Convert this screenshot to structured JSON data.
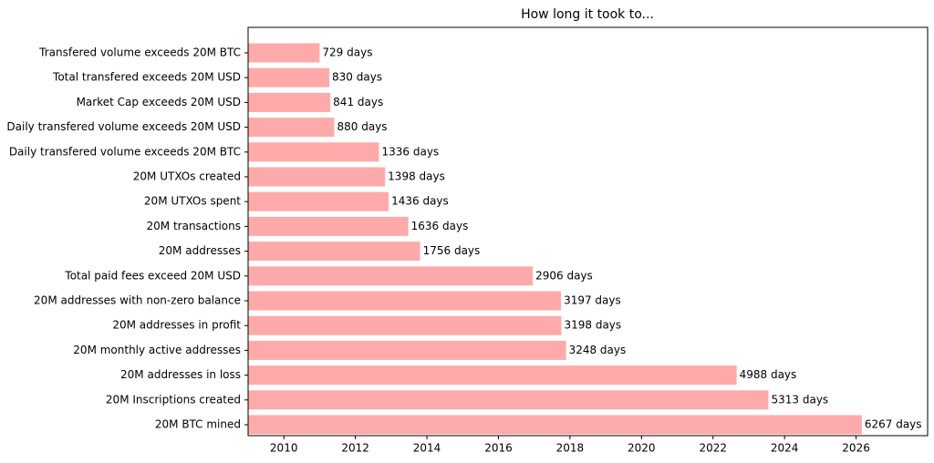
{
  "chart_data": {
    "type": "barh",
    "title": "How long it took to...",
    "categories": [
      "Transfered volume exceeds 20M BTC",
      "Total transfered exceeds 20M USD",
      "Market Cap exceeds 20M USD",
      "Daily transfered volume exceeds 20M USD",
      "Daily transfered volume exceeds 20M BTC",
      "20M UTXOs created",
      "20M UTXOs spent",
      "20M transactions",
      "20M addresses",
      "Total paid fees exceed 20M USD",
      "20M addresses with non-zero balance",
      "20M addresses in profit",
      "20M monthly active addresses",
      "20M addresses in loss",
      "20M Inscriptions created",
      "20M BTC mined"
    ],
    "values": [
      2011.0,
      2011.27,
      2011.3,
      2011.41,
      2012.66,
      2012.83,
      2012.93,
      2013.48,
      2013.81,
      2016.96,
      2017.75,
      2017.76,
      2017.89,
      2022.66,
      2023.55,
      2026.16
    ],
    "value_labels": [
      "729 days",
      "830 days",
      "841 days",
      "880 days",
      "1336 days",
      "1398 days",
      "1436 days",
      "1636 days",
      "1756 days",
      "2906 days",
      "3197 days",
      "3198 days",
      "3248 days",
      "4988 days",
      "5313 days",
      "6267 days"
    ],
    "color": "#ffaaaa",
    "xlim": [
      2009.0,
      2028.0
    ],
    "xticks": [
      2010,
      2012,
      2014,
      2016,
      2018,
      2020,
      2022,
      2024,
      2026
    ]
  }
}
